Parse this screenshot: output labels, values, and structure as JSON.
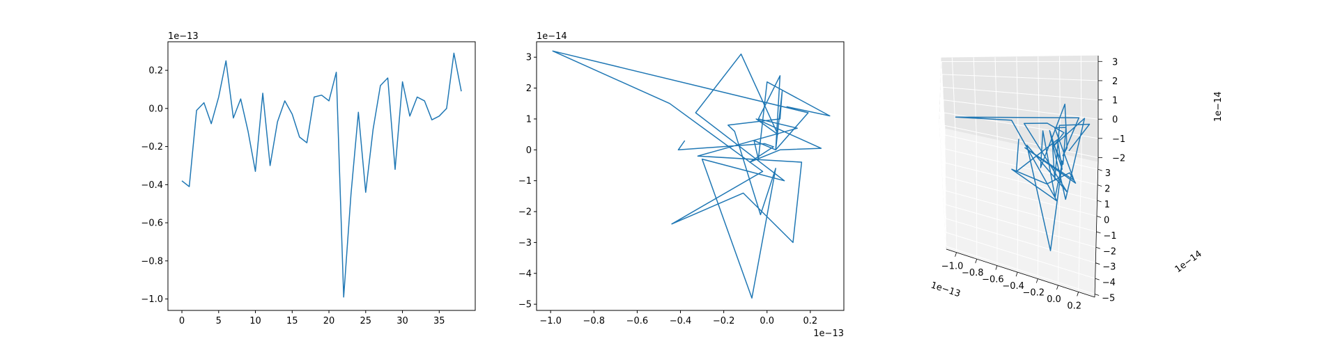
{
  "figure": {
    "background": "#ffffff",
    "line_color": "#1f77b4"
  },
  "chart_data": [
    {
      "type": "line",
      "title": "",
      "xlabel": "",
      "ylabel": "",
      "xlim": [
        -1.9,
        39.9
      ],
      "ylim": [
        -1.06,
        0.35
      ],
      "y_offset_text": "1e−13",
      "x_ticks": [
        0,
        5,
        10,
        15,
        20,
        25,
        30,
        35
      ],
      "x_tick_labels": [
        "0",
        "5",
        "10",
        "15",
        "20",
        "25",
        "30",
        "35"
      ],
      "y_ticks": [
        -1.0,
        -0.8,
        -0.6,
        -0.4,
        -0.2,
        0.0,
        0.2
      ],
      "y_tick_labels": [
        "−1.0",
        "−0.8",
        "−0.6",
        "−0.4",
        "−0.2",
        "0.0",
        "0.2"
      ],
      "grid": false,
      "series": [
        {
          "x": [
            0,
            1,
            2,
            3,
            4,
            5,
            6,
            7,
            8,
            9,
            10,
            11,
            12,
            13,
            14,
            15,
            16,
            17,
            18,
            19,
            20,
            21,
            22,
            23,
            24,
            25,
            26,
            27,
            28,
            29,
            30,
            31,
            32,
            33,
            34,
            35,
            36,
            37,
            38
          ],
          "values": [
            -0.38,
            -0.41,
            -0.01,
            0.03,
            -0.08,
            0.06,
            0.25,
            -0.05,
            0.05,
            -0.12,
            -0.33,
            0.08,
            -0.3,
            -0.07,
            0.04,
            -0.03,
            -0.15,
            -0.18,
            0.06,
            0.07,
            0.04,
            0.19,
            -0.99,
            -0.45,
            -0.02,
            -0.44,
            -0.11,
            0.12,
            0.16,
            -0.32,
            0.14,
            -0.04,
            0.06,
            0.04,
            -0.06,
            -0.04,
            0.0,
            0.29,
            0.09
          ]
        }
      ]
    },
    {
      "type": "line",
      "title": "",
      "xlabel": "",
      "ylabel": "",
      "xlim": [
        -1.065,
        0.355
      ],
      "ylim": [
        -5.2,
        3.5
      ],
      "x_offset_text": "1e−13",
      "y_offset_text": "1e−14",
      "x_ticks": [
        -1.0,
        -0.8,
        -0.6,
        -0.4,
        -0.2,
        0.0,
        0.2
      ],
      "x_tick_labels": [
        "−1.0",
        "−0.8",
        "−0.6",
        "−0.4",
        "−0.2",
        "0.0",
        "0.2"
      ],
      "y_ticks": [
        -5,
        -4,
        -3,
        -2,
        -1,
        0,
        1,
        2,
        3
      ],
      "y_tick_labels": [
        "−5",
        "−4",
        "−3",
        "−2",
        "−1",
        "0",
        "1",
        "2",
        "3"
      ],
      "grid": false,
      "series": [
        {
          "x": [
            -0.38,
            -0.41,
            -0.01,
            0.03,
            -0.08,
            0.06,
            0.25,
            -0.05,
            0.05,
            -0.12,
            -0.33,
            0.08,
            -0.3,
            -0.07,
            0.04,
            -0.03,
            -0.15,
            -0.18,
            0.06,
            0.07,
            0.04,
            0.19,
            -0.99,
            -0.45,
            -0.02,
            -0.44,
            -0.11,
            0.12,
            0.16,
            -0.32,
            0.14,
            -0.04,
            0.06,
            0.04,
            -0.06,
            -0.04,
            0.0,
            0.29,
            0.09
          ],
          "values": [
            0.3,
            0.0,
            0.2,
            0.1,
            -0.4,
            0.0,
            0.05,
            1.0,
            0.5,
            3.1,
            1.2,
            -1.0,
            -0.3,
            -4.8,
            -0.6,
            -2.1,
            0.6,
            0.8,
            1.0,
            1.9,
            0.0,
            1.2,
            3.2,
            1.5,
            -0.7,
            -2.4,
            -1.4,
            -3.0,
            -0.4,
            -0.2,
            0.7,
            1.0,
            2.4,
            0.0,
            0.3,
            -0.3,
            2.2,
            1.1,
            1.4
          ]
        }
      ]
    },
    {
      "type": "line3d",
      "title": "",
      "xlabel": "",
      "ylabel": "",
      "zlabel": "",
      "x_offset_text": "1e−13",
      "y_offset_text": "1e−14",
      "z_offset_text": "1e−14",
      "x_tick_labels": [
        "−1.0",
        "−0.8",
        "−0.6",
        "−0.4",
        "−0.2",
        "0.0",
        "0.2"
      ],
      "y_tick_labels": [
        "−5",
        "−4",
        "−3",
        "−2",
        "−1",
        "0",
        "1",
        "2",
        "3"
      ],
      "z_tick_labels": [
        "−2",
        "−1",
        "0",
        "1",
        "2",
        "3"
      ],
      "xlim": [
        -1.1,
        0.36
      ],
      "ylim": [
        -5.2,
        3.5
      ],
      "zlim": [
        -2.2,
        3.3
      ],
      "grid": true,
      "series": [
        {
          "x": [
            -0.38,
            -0.41,
            -0.01,
            0.03,
            -0.08,
            0.06,
            0.25,
            -0.05,
            0.05,
            -0.12,
            -0.33,
            0.08,
            -0.3,
            -0.07,
            0.04,
            -0.03,
            -0.15,
            -0.18,
            0.06,
            0.07,
            0.04,
            0.19,
            -0.99,
            -0.45,
            -0.02,
            -0.44,
            -0.11,
            0.12,
            0.16,
            -0.32,
            0.14,
            -0.04,
            0.06,
            0.04,
            -0.06,
            -0.04,
            0.0,
            0.29,
            0.09
          ],
          "y": [
            0.3,
            0.0,
            0.2,
            0.1,
            -0.4,
            0.0,
            0.05,
            1.0,
            0.5,
            3.1,
            1.2,
            -1.0,
            -0.3,
            -4.8,
            -0.6,
            -2.1,
            0.6,
            0.8,
            1.0,
            1.9,
            0.0,
            1.2,
            3.2,
            1.5,
            -0.7,
            -2.4,
            -1.4,
            -3.0,
            -0.4,
            -0.2,
            0.7,
            1.0,
            2.4,
            0.0,
            0.3,
            -0.3,
            2.2,
            1.1,
            1.4
          ],
          "z": [
            0.5,
            -1.0,
            0.8,
            -0.5,
            1.5,
            -1.8,
            2.0,
            0.0,
            1.0,
            -0.3,
            0.8,
            -0.8,
            0.6,
            -1.2,
            0.3,
            -0.5,
            0.9,
            -1.1,
            2.1,
            -0.6,
            0.2,
            1.4,
            -0.9,
            0.7,
            -1.5,
            0.5,
            -0.4,
            1.1,
            -0.7,
            0.4,
            -1.3,
            0.9,
            0.1,
            -0.2,
            0.6,
            -0.8,
            0.3,
            1.2,
            -0.4
          ]
        }
      ]
    }
  ]
}
